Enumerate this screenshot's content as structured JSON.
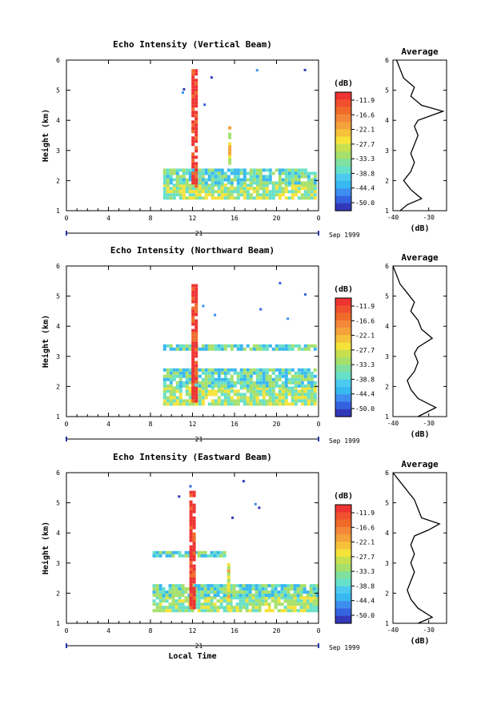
{
  "chart_data": [
    {
      "type": "heatmap",
      "title": "Echo Intensity (Vertical Beam)",
      "ylabel": "Height (km)",
      "xlabel": "",
      "date_label": "21",
      "month_label": "Sep 1999",
      "x_ticks": [
        "0",
        "4",
        "8",
        "12",
        "16",
        "20",
        "0"
      ],
      "y_ticks": [
        "1",
        "2",
        "3",
        "4",
        "5",
        "6"
      ],
      "xlim": [
        0,
        24
      ],
      "ylim": [
        1,
        6
      ],
      "colorbar": {
        "label": "(dB)",
        "ticks": [
          "-11.9",
          "-16.6",
          "-22.1",
          "-27.7",
          "-33.3",
          "-38.8",
          "-44.4",
          "-50.0"
        ]
      },
      "average": {
        "title": "Average",
        "xlabel": "(dB)",
        "x_ticks": [
          "-40",
          "-30"
        ],
        "xlim": [
          -40,
          -25
        ],
        "ylim": [
          1,
          6
        ],
        "y_ticks": [
          "1",
          "2",
          "3",
          "4",
          "5",
          "6"
        ],
        "profile": [
          [
            -38,
            1.0
          ],
          [
            -36,
            1.2
          ],
          [
            -32,
            1.4
          ],
          [
            -35,
            1.7
          ],
          [
            -37,
            2.0
          ],
          [
            -35,
            2.3
          ],
          [
            -34,
            2.6
          ],
          [
            -35,
            2.9
          ],
          [
            -34,
            3.2
          ],
          [
            -33,
            3.5
          ],
          [
            -34,
            3.8
          ],
          [
            -33,
            4.0
          ],
          [
            -26,
            4.3
          ],
          [
            -32,
            4.5
          ],
          [
            -35,
            4.8
          ],
          [
            -34,
            5.1
          ],
          [
            -37,
            5.4
          ],
          [
            -38,
            5.7
          ],
          [
            -39,
            6.0
          ]
        ]
      },
      "layers": [
        {
          "x0": 9.2,
          "x1": 23.8,
          "y0": 1.4,
          "y1": 1.9,
          "level": 4
        },
        {
          "x0": 9.2,
          "x1": 23.8,
          "y0": 1.9,
          "y1": 2.4,
          "level": 5
        },
        {
          "x0": 11.9,
          "x1": 12.4,
          "y0": 1.8,
          "y1": 5.7,
          "level": 0
        },
        {
          "x0": 15.4,
          "x1": 15.7,
          "y0": 2.6,
          "y1": 3.8,
          "level": 3
        }
      ]
    },
    {
      "type": "heatmap",
      "title": "Echo Intensity (Northward Beam)",
      "ylabel": "Height (km)",
      "xlabel": "",
      "date_label": "21",
      "month_label": "Sep 1999",
      "x_ticks": [
        "0",
        "4",
        "8",
        "12",
        "16",
        "20",
        "0"
      ],
      "y_ticks": [
        "1",
        "2",
        "3",
        "4",
        "5",
        "6"
      ],
      "xlim": [
        0,
        24
      ],
      "ylim": [
        1,
        6
      ],
      "colorbar": {
        "label": "(dB)",
        "ticks": [
          "-11.9",
          "-16.6",
          "-22.1",
          "-27.7",
          "-33.3",
          "-38.8",
          "-44.4",
          "-50.0"
        ]
      },
      "average": {
        "title": "Average",
        "xlabel": "(dB)",
        "x_ticks": [
          "-40",
          "-30"
        ],
        "xlim": [
          -40,
          -25
        ],
        "ylim": [
          1,
          6
        ],
        "y_ticks": [
          "1",
          "2",
          "3",
          "4",
          "5",
          "6"
        ],
        "profile": [
          [
            -33,
            1.0
          ],
          [
            -28,
            1.3
          ],
          [
            -33,
            1.6
          ],
          [
            -35,
            1.9
          ],
          [
            -36,
            2.2
          ],
          [
            -34,
            2.5
          ],
          [
            -33,
            2.8
          ],
          [
            -34,
            3.1
          ],
          [
            -33,
            3.3
          ],
          [
            -29,
            3.6
          ],
          [
            -32,
            3.9
          ],
          [
            -33,
            4.2
          ],
          [
            -35,
            4.5
          ],
          [
            -34,
            4.8
          ],
          [
            -36,
            5.1
          ],
          [
            -38,
            5.4
          ],
          [
            -39,
            5.7
          ],
          [
            -40,
            6.0
          ]
        ]
      },
      "layers": [
        {
          "x0": 9.2,
          "x1": 23.8,
          "y0": 1.4,
          "y1": 2.0,
          "level": 4
        },
        {
          "x0": 9.2,
          "x1": 23.8,
          "y0": 2.0,
          "y1": 2.6,
          "level": 5
        },
        {
          "x0": 9.2,
          "x1": 23.8,
          "y0": 3.2,
          "y1": 3.4,
          "level": 5
        },
        {
          "x0": 11.9,
          "x1": 12.4,
          "y0": 1.5,
          "y1": 5.4,
          "level": 0
        }
      ]
    },
    {
      "type": "heatmap",
      "title": "Echo Intensity (Eastward Beam)",
      "ylabel": "Height (km)",
      "xlabel": "Local Time",
      "date_label": "21",
      "month_label": "Sep 1999",
      "x_ticks": [
        "0",
        "4",
        "8",
        "12",
        "16",
        "20",
        "0"
      ],
      "y_ticks": [
        "1",
        "2",
        "3",
        "4",
        "5",
        "6"
      ],
      "xlim": [
        0,
        24
      ],
      "ylim": [
        1,
        6
      ],
      "colorbar": {
        "label": "(dB)",
        "ticks": [
          "-11.9",
          "-16.6",
          "-22.1",
          "-27.7",
          "-33.3",
          "-38.8",
          "-44.4",
          "-50.0"
        ]
      },
      "average": {
        "title": "Average",
        "xlabel": "(dB)",
        "x_ticks": [
          "-40",
          "-30"
        ],
        "xlim": [
          -40,
          -25
        ],
        "ylim": [
          1,
          6
        ],
        "y_ticks": [
          "1",
          "2",
          "3",
          "4",
          "5",
          "6"
        ],
        "profile": [
          [
            -33,
            1.0
          ],
          [
            -29,
            1.2
          ],
          [
            -33,
            1.5
          ],
          [
            -35,
            1.8
          ],
          [
            -36,
            2.1
          ],
          [
            -35,
            2.4
          ],
          [
            -34,
            2.7
          ],
          [
            -35,
            3.0
          ],
          [
            -34,
            3.3
          ],
          [
            -35,
            3.6
          ],
          [
            -34,
            3.9
          ],
          [
            -30,
            4.1
          ],
          [
            -27,
            4.3
          ],
          [
            -32,
            4.5
          ],
          [
            -33,
            4.8
          ],
          [
            -34,
            5.1
          ],
          [
            -36,
            5.4
          ],
          [
            -38,
            5.7
          ],
          [
            -40,
            6.0
          ]
        ]
      },
      "layers": [
        {
          "x0": 8.2,
          "x1": 23.8,
          "y0": 1.4,
          "y1": 1.9,
          "level": 4
        },
        {
          "x0": 8.2,
          "x1": 23.8,
          "y0": 1.9,
          "y1": 2.3,
          "level": 5
        },
        {
          "x0": 8.2,
          "x1": 15.0,
          "y0": 3.2,
          "y1": 3.4,
          "level": 5
        },
        {
          "x0": 11.7,
          "x1": 12.1,
          "y0": 1.5,
          "y1": 5.4,
          "level": 0
        },
        {
          "x0": 15.3,
          "x1": 15.6,
          "y0": 1.5,
          "y1": 3.0,
          "level": 3
        }
      ]
    }
  ],
  "palette": [
    "#ee3333",
    "#f06a2a",
    "#f4a23b",
    "#f6e33a",
    "#a6e06a",
    "#66e0c8",
    "#38b8f0",
    "#3e8ef0",
    "#3563e0",
    "#3238b8",
    "#2c2878"
  ]
}
